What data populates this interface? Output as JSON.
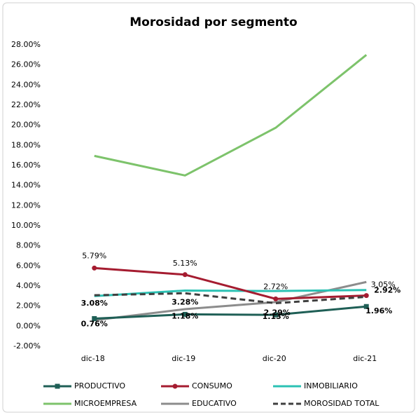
{
  "chart_data": {
    "type": "line",
    "title": "Morosidad por segmento",
    "categories": [
      "dic-18",
      "dic-19",
      "dic-20",
      "dic-21"
    ],
    "ylim": [
      -2,
      28
    ],
    "yticks": [
      {
        "value": -2,
        "label": "-2.00%"
      },
      {
        "value": 0,
        "label": "0.00%"
      },
      {
        "value": 2,
        "label": "2.00%"
      },
      {
        "value": 4,
        "label": "4.00%"
      },
      {
        "value": 6,
        "label": "6.00%"
      },
      {
        "value": 8,
        "label": "8.00%"
      },
      {
        "value": 10,
        "label": "10.00%"
      },
      {
        "value": 12,
        "label": "12.00%"
      },
      {
        "value": 14,
        "label": "14.00%"
      },
      {
        "value": 16,
        "label": "16.00%"
      },
      {
        "value": 18,
        "label": "18.00%"
      },
      {
        "value": 20,
        "label": "20.00%"
      },
      {
        "value": 22,
        "label": "22.00%"
      },
      {
        "value": 24,
        "label": "24.00%"
      },
      {
        "value": 26,
        "label": "26.00%"
      },
      {
        "value": 28,
        "label": "28.00%"
      }
    ],
    "series": [
      {
        "name": "PRODUCTIVO",
        "color": "#1f5f56",
        "marker": "square",
        "values": [
          0.76,
          1.18,
          1.13,
          1.96
        ],
        "value_labels": [
          "0.76%",
          "1.18%",
          "1.13%",
          "1.96%"
        ]
      },
      {
        "name": "CONSUMO",
        "color": "#a51c30",
        "marker": "circle",
        "values": [
          5.79,
          5.13,
          2.72,
          3.05
        ],
        "value_labels": [
          "5.79%",
          "5.13%",
          "2.72%",
          "3.05%"
        ]
      },
      {
        "name": "INMOBILIARIO",
        "color": "#2cc2b4",
        "values": [
          3.0,
          3.55,
          3.5,
          3.6
        ]
      },
      {
        "name": "MICROEMPRESA",
        "color": "#7dc36b",
        "values": [
          16.95,
          15.0,
          19.75,
          27.0
        ]
      },
      {
        "name": "EDUCATIVO",
        "color": "#8c8c8c",
        "values": [
          0.6,
          1.7,
          2.4,
          4.4
        ]
      },
      {
        "name": "MOROSIDAD TOTAL",
        "color": "#3f3f3f",
        "dashed": true,
        "values": [
          3.08,
          3.28,
          2.29,
          2.92
        ],
        "value_labels": [
          "3.08%",
          "3.28%",
          "2.29%",
          "2.92%"
        ]
      }
    ]
  }
}
